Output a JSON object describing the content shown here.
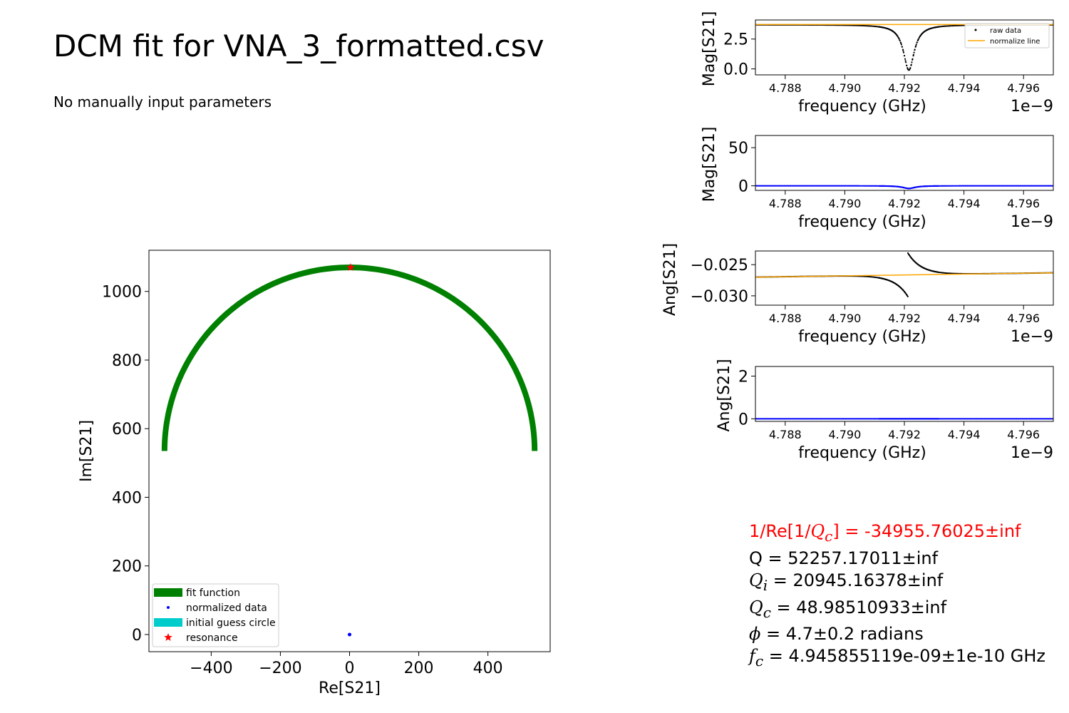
{
  "title": "DCM fit for VNA_3_formatted.csv",
  "subtitle": "No manually input parameters",
  "params": {
    "inv_re_qc": {
      "label": "1/Re[1/",
      "sym": "Q",
      "sub": "c",
      "rest": "] = -34955.76025±inf"
    },
    "q": {
      "label": "Q = 52257.17011±inf"
    },
    "qi": {
      "sym": "Q",
      "sub": "i",
      "rest": " = 20945.16378±inf"
    },
    "qc": {
      "sym": "Q",
      "sub": "c",
      "rest": " = 48.98510933±inf"
    },
    "phi": {
      "sym": "ϕ",
      "rest": " = 4.7±0.2 radians"
    },
    "fc": {
      "sym": "f",
      "sub": "c",
      "rest": " = 4.945855119e-09±1e-10 GHz"
    }
  },
  "colors": {
    "fit": "#008000",
    "data": "#0000ff",
    "raw": "#000000",
    "normalize": "#ffa500",
    "initial_guess": "#00cccc",
    "resonance": "#ff0000"
  },
  "chart_data": [
    {
      "id": "circle",
      "type": "scatter",
      "xlabel": "Re[S21]",
      "ylabel": "Im[S21]",
      "xlim": [
        -580,
        580
      ],
      "ylim": [
        -50,
        1120
      ],
      "xticks": [
        -400,
        -200,
        0,
        200,
        400
      ],
      "xtick_labels": [
        "−400",
        "−200",
        "0",
        "200",
        "400"
      ],
      "yticks": [
        0,
        200,
        400,
        600,
        800,
        1000
      ],
      "ytick_labels": [
        "0",
        "200",
        "400",
        "600",
        "800",
        "1000"
      ],
      "legend": {
        "placement": "lower-left",
        "entries": [
          "fit function",
          "normalized data",
          "initial guess circle",
          "resonance"
        ]
      },
      "fit_circle": {
        "center": [
          0,
          535
        ],
        "radius": 535,
        "angle_start_deg": 0,
        "angle_end_deg": 180
      },
      "normalized_data": [
        [
          0,
          0
        ]
      ],
      "resonance": [
        3,
        1070
      ]
    },
    {
      "id": "raw-mag",
      "type": "line",
      "xlabel": "frequency (GHz)",
      "ylabel": "Mag[S21]",
      "offset_label": "1e−9",
      "xlim": [
        4.787,
        4.797
      ],
      "ylim": [
        -0.5,
        4.1
      ],
      "xticks": [
        4.788,
        4.79,
        4.792,
        4.794,
        4.796
      ],
      "xtick_labels": [
        "4.788",
        "4.790",
        "4.792",
        "4.794",
        "4.796"
      ],
      "yticks": [
        0.0,
        2.5
      ],
      "ytick_labels": [
        "0.0",
        "2.5"
      ],
      "legend": {
        "placement": "upper-right",
        "entries": [
          "raw data",
          "normalize line"
        ]
      },
      "series": [
        {
          "name": "raw data",
          "style": "points",
          "model": {
            "baseline": 3.7,
            "dip_center": 4.79215,
            "dip_depth": 3.8,
            "dip_width": 0.00022,
            "step": 0.0
          }
        },
        {
          "name": "normalize line",
          "style": "line",
          "x": [
            4.787,
            4.797
          ],
          "y": [
            3.72,
            3.72
          ]
        }
      ]
    },
    {
      "id": "norm-mag",
      "type": "line",
      "xlabel": "frequency (GHz)",
      "ylabel": "Mag[S21]",
      "offset_label": "1e−9",
      "xlim": [
        4.787,
        4.797
      ],
      "ylim": [
        -6,
        66
      ],
      "xticks": [
        4.788,
        4.79,
        4.792,
        4.794,
        4.796
      ],
      "xtick_labels": [
        "4.788",
        "4.790",
        "4.792",
        "4.794",
        "4.796"
      ],
      "yticks": [
        0,
        50
      ],
      "ytick_labels": [
        "0",
        "50"
      ],
      "series": [
        {
          "name": "",
          "style": "points",
          "model": {
            "baseline": 0.0,
            "dip_center": 4.79215,
            "dip_depth": 3.5,
            "dip_width": 0.00025,
            "step": 0.0
          }
        }
      ]
    },
    {
      "id": "raw-ang",
      "type": "line",
      "xlabel": "frequency (GHz)",
      "ylabel": "Ang[S21]",
      "offset_label": "1e−9",
      "xlim": [
        4.787,
        4.797
      ],
      "ylim": [
        -0.0315,
        -0.0228
      ],
      "xticks": [
        4.788,
        4.79,
        4.792,
        4.794,
        4.796
      ],
      "xtick_labels": [
        "4.788",
        "4.790",
        "4.792",
        "4.794",
        "4.796"
      ],
      "yticks": [
        -0.025,
        -0.03
      ],
      "ytick_labels": [
        "−0.025",
        "−0.030"
      ],
      "series": [
        {
          "name": "raw data",
          "style": "points",
          "model": {
            "baseline_start": -0.027,
            "baseline_end": -0.0263,
            "res_center": 4.79212,
            "res_amp": 0.0035,
            "res_width": 0.00045
          }
        },
        {
          "name": "normalize line",
          "style": "line",
          "x": [
            4.787,
            4.797
          ],
          "y": [
            -0.027,
            -0.0263
          ]
        }
      ]
    },
    {
      "id": "norm-ang",
      "type": "line",
      "xlabel": "frequency (GHz)",
      "ylabel": "Ang[S21]",
      "offset_label": "1e−9",
      "xlim": [
        4.787,
        4.797
      ],
      "ylim": [
        -0.12,
        2.45
      ],
      "xticks": [
        4.788,
        4.79,
        4.792,
        4.794,
        4.796
      ],
      "xtick_labels": [
        "4.788",
        "4.790",
        "4.792",
        "4.794",
        "4.796"
      ],
      "yticks": [
        0,
        2
      ],
      "ytick_labels": [
        "0",
        "2"
      ],
      "series": [
        {
          "name": "",
          "style": "points",
          "model": {
            "baseline": 0.0,
            "dip_center": 4.79215,
            "dip_depth": 0.0,
            "dip_width": 0.0003,
            "step": 0.0
          }
        }
      ]
    }
  ]
}
